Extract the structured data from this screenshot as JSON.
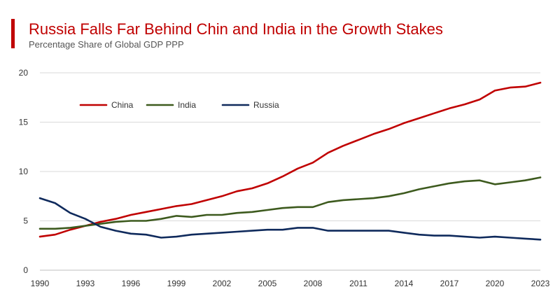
{
  "header": {
    "title": "Russia Falls Far Behind Chin and India in the Growth Stakes",
    "subtitle": "Percentage Share of Global GDP PPP"
  },
  "colors": {
    "accent": "#c00000",
    "china": "#c00000",
    "india": "#3d5a1e",
    "russia": "#0f2a5c",
    "grid": "#d9d9d9",
    "axis_text": "#333333"
  },
  "chart_data": {
    "type": "line",
    "title": "Russia Falls Far Behind Chin and India in the Growth Stakes",
    "subtitle": "Percentage Share of Global GDP PPP",
    "xlabel": "",
    "ylabel": "",
    "ylim": [
      0,
      20
    ],
    "yticks": [
      0,
      5,
      10,
      15,
      20
    ],
    "xlim": [
      1990,
      2023
    ],
    "xticks": [
      1990,
      1993,
      1996,
      1999,
      2002,
      2005,
      2008,
      2011,
      2014,
      2017,
      2020,
      2023
    ],
    "grid": "horizontal",
    "legend": "top-left",
    "x": [
      1990,
      1991,
      1992,
      1993,
      1994,
      1995,
      1996,
      1997,
      1998,
      1999,
      2000,
      2001,
      2002,
      2003,
      2004,
      2005,
      2006,
      2007,
      2008,
      2009,
      2010,
      2011,
      2012,
      2013,
      2014,
      2015,
      2016,
      2017,
      2018,
      2019,
      2020,
      2021,
      2022,
      2023
    ],
    "series": [
      {
        "name": "China",
        "color": "#c00000",
        "values": [
          3.4,
          3.6,
          4.1,
          4.5,
          4.9,
          5.2,
          5.6,
          5.9,
          6.2,
          6.5,
          6.7,
          7.1,
          7.5,
          8.0,
          8.3,
          8.8,
          9.5,
          10.3,
          10.9,
          11.9,
          12.6,
          13.2,
          13.8,
          14.3,
          14.9,
          15.4,
          15.9,
          16.4,
          16.8,
          17.3,
          18.2,
          18.5,
          18.6,
          19.0
        ]
      },
      {
        "name": "India",
        "color": "#3d5a1e",
        "values": [
          4.2,
          4.2,
          4.3,
          4.5,
          4.7,
          4.9,
          5.0,
          5.0,
          5.2,
          5.5,
          5.4,
          5.6,
          5.6,
          5.8,
          5.9,
          6.1,
          6.3,
          6.4,
          6.4,
          6.9,
          7.1,
          7.2,
          7.3,
          7.5,
          7.8,
          8.2,
          8.5,
          8.8,
          9.0,
          9.1,
          8.7,
          8.9,
          9.1,
          9.4
        ]
      },
      {
        "name": "Russia",
        "color": "#0f2a5c",
        "values": [
          7.3,
          6.8,
          5.8,
          5.2,
          4.4,
          4.0,
          3.7,
          3.6,
          3.3,
          3.4,
          3.6,
          3.7,
          3.8,
          3.9,
          4.0,
          4.1,
          4.1,
          4.3,
          4.3,
          4.0,
          4.0,
          4.0,
          4.0,
          4.0,
          3.8,
          3.6,
          3.5,
          3.5,
          3.4,
          3.3,
          3.4,
          3.3,
          3.2,
          3.1
        ]
      }
    ]
  }
}
